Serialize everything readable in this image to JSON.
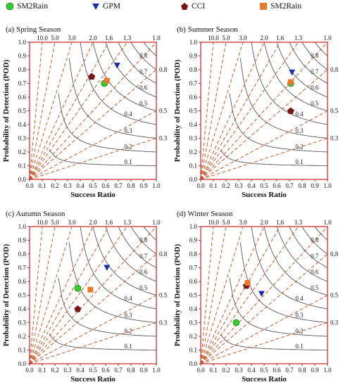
{
  "legend": [
    {
      "label": "SM2Rain",
      "marker": "circle",
      "color": "#33cc33"
    },
    {
      "label": "GPM",
      "marker": "triangle-down",
      "color": "#1a2ea8"
    },
    {
      "label": "CCI",
      "marker": "pentagon",
      "color": "#7a1515"
    },
    {
      "label": "SM2Rain",
      "marker": "square",
      "color": "#e8782a"
    }
  ],
  "colors": {
    "border": "#d43030",
    "bias_lines": "#c85a2a",
    "csi_lines": "#444444"
  },
  "chart_data": [
    {
      "type": "scatter",
      "panel_label": "(a)",
      "title": "Spring Season",
      "xlabel": "Success Ratio",
      "ylabel": "Probability of Detection (POD)",
      "xlim": [
        0,
        1
      ],
      "ylim": [
        0,
        1
      ],
      "x_ticks": [
        "0.0",
        "0.1",
        "0.2",
        "0.3",
        "0.4",
        "0.5",
        "0.6",
        "0.7",
        "0.8",
        "0.9",
        "1.0"
      ],
      "y_ticks": [
        "0.0",
        "0.1",
        "0.2",
        "0.3",
        "0.4",
        "0.5",
        "0.6",
        "0.7",
        "0.8",
        "0.9",
        "1.0"
      ],
      "bias_lines": [
        10.0,
        5.0,
        3.0,
        2.0,
        1.6,
        1.3,
        1.0,
        0.8,
        0.5,
        0.3
      ],
      "top_labels": [
        "10.0",
        "5.0",
        "3.0",
        "2.0",
        "1.6",
        "1.3",
        "1.0"
      ],
      "right_labels": [
        "0.8",
        "0.5",
        "0.3"
      ],
      "csi_lines": [
        0.1,
        0.2,
        0.3,
        0.4,
        0.5,
        0.6,
        0.7,
        0.8,
        0.9
      ],
      "points": [
        {
          "name": "SM2Rain",
          "marker": "circle",
          "x": 0.59,
          "y": 0.7
        },
        {
          "name": "GPM",
          "marker": "triangle-down",
          "x": 0.69,
          "y": 0.83
        },
        {
          "name": "CCI",
          "marker": "pentagon",
          "x": 0.49,
          "y": 0.75
        },
        {
          "name": "SM2Rain",
          "marker": "square",
          "x": 0.61,
          "y": 0.72
        }
      ]
    },
    {
      "type": "scatter",
      "panel_label": "(b)",
      "title": "Summer Season",
      "xlabel": "Success Ratio",
      "ylabel": "Probability of Detection (POD)",
      "xlim": [
        0,
        1
      ],
      "ylim": [
        0,
        1
      ],
      "x_ticks": [
        "0.0",
        "0.1",
        "0.2",
        "0.3",
        "0.4",
        "0.5",
        "0.6",
        "0.7",
        "0.8",
        "0.9",
        "1.0"
      ],
      "y_ticks": [
        "0.0",
        "0.1",
        "0.2",
        "0.3",
        "0.4",
        "0.5",
        "0.6",
        "0.7",
        "0.8",
        "0.9",
        "1.0"
      ],
      "bias_lines": [
        10.0,
        5.0,
        3.0,
        2.0,
        1.6,
        1.3,
        1.0,
        0.8,
        0.5,
        0.3
      ],
      "top_labels": [
        "10.0",
        "5.0",
        "3.0",
        "2.0",
        "1.6",
        "1.3",
        "1.0"
      ],
      "right_labels": [
        "0.8",
        "0.5",
        "0.3"
      ],
      "csi_lines": [
        0.1,
        0.2,
        0.3,
        0.4,
        0.5,
        0.6,
        0.7,
        0.8,
        0.9
      ],
      "points": [
        {
          "name": "SM2Rain",
          "marker": "circle",
          "x": 0.71,
          "y": 0.7
        },
        {
          "name": "GPM",
          "marker": "triangle-down",
          "x": 0.72,
          "y": 0.78
        },
        {
          "name": "CCI",
          "marker": "pentagon",
          "x": 0.71,
          "y": 0.5
        },
        {
          "name": "SM2Rain",
          "marker": "square",
          "x": 0.71,
          "y": 0.71
        }
      ]
    },
    {
      "type": "scatter",
      "panel_label": "(c)",
      "title": "Autumn Season",
      "xlabel": "Success Ratio",
      "ylabel": "Probability of Detection (POD)",
      "xlim": [
        0,
        1
      ],
      "ylim": [
        0,
        1
      ],
      "x_ticks": [
        "0.0",
        "0.1",
        "0.2",
        "0.3",
        "0.4",
        "0.5",
        "0.6",
        "0.7",
        "0.8",
        "0.9",
        "1.0"
      ],
      "y_ticks": [
        "0.0",
        "0.1",
        "0.2",
        "0.3",
        "0.4",
        "0.5",
        "0.6",
        "0.7",
        "0.8",
        "0.9",
        "1.0"
      ],
      "bias_lines": [
        10.0,
        5.0,
        3.0,
        2.0,
        1.6,
        1.3,
        1.0,
        0.8,
        0.5,
        0.3
      ],
      "top_labels": [
        "10.0",
        "5.0",
        "3.0",
        "2.0",
        "1.6",
        "1.3",
        "1.0"
      ],
      "right_labels": [
        "0.8",
        "0.5",
        "0.3"
      ],
      "csi_lines": [
        0.1,
        0.2,
        0.3,
        0.4,
        0.5,
        0.6,
        0.7,
        0.8,
        0.9
      ],
      "points": [
        {
          "name": "SM2Rain",
          "marker": "circle",
          "x": 0.38,
          "y": 0.55
        },
        {
          "name": "GPM",
          "marker": "triangle-down",
          "x": 0.61,
          "y": 0.7
        },
        {
          "name": "CCI",
          "marker": "pentagon",
          "x": 0.38,
          "y": 0.4
        },
        {
          "name": "SM2Rain",
          "marker": "square",
          "x": 0.48,
          "y": 0.54
        }
      ]
    },
    {
      "type": "scatter",
      "panel_label": "(d)",
      "title": "Winter Season",
      "xlabel": "Success Ratio",
      "ylabel": "Probability of Detection (POD)",
      "xlim": [
        0,
        1
      ],
      "ylim": [
        0,
        1
      ],
      "x_ticks": [
        "0.0",
        "0.1",
        "0.2",
        "0.3",
        "0.4",
        "0.5",
        "0.6",
        "0.7",
        "0.8",
        "0.9",
        "1.0"
      ],
      "y_ticks": [
        "0.0",
        "0.1",
        "0.2",
        "0.3",
        "0.4",
        "0.5",
        "0.6",
        "0.7",
        "0.8",
        "0.9",
        "1.0"
      ],
      "bias_lines": [
        10.0,
        5.0,
        3.0,
        2.0,
        1.6,
        1.3,
        1.0,
        0.8,
        0.5,
        0.3
      ],
      "top_labels": [
        "10.0",
        "5.0",
        "3.0",
        "2.0",
        "1.6",
        "1.3",
        "1.0"
      ],
      "right_labels": [
        "0.8",
        "0.5",
        "0.3"
      ],
      "csi_lines": [
        0.1,
        0.2,
        0.3,
        0.4,
        0.5,
        0.6,
        0.7,
        0.8,
        0.9
      ],
      "points": [
        {
          "name": "SM2Rain",
          "marker": "circle",
          "x": 0.28,
          "y": 0.3
        },
        {
          "name": "GPM",
          "marker": "triangle-down",
          "x": 0.48,
          "y": 0.51
        },
        {
          "name": "CCI",
          "marker": "pentagon",
          "x": 0.36,
          "y": 0.57
        },
        {
          "name": "SM2Rain",
          "marker": "square",
          "x": 0.37,
          "y": 0.59
        }
      ]
    }
  ]
}
